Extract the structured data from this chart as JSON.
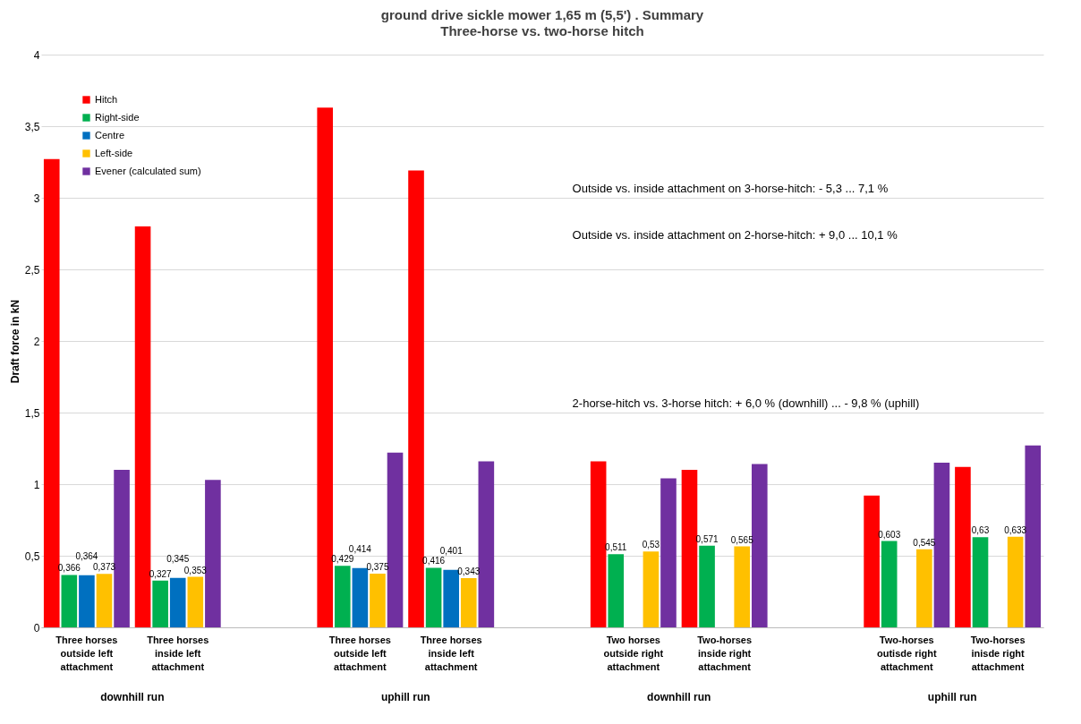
{
  "chart_data": {
    "type": "bar",
    "title": "ground drive sickle mower 1,65 m (5,5') . Summary",
    "subtitle": "Three-horse vs. two-horse hitch",
    "ylabel": "Draft force in kN",
    "categories": [
      "Three horses outside left attachment",
      "Three horses inside left attachment",
      null,
      "Three horses outside left attachment",
      "Three horses inside left attachment",
      null,
      "Two horses outside right attachment",
      "Two-horses inside right attachment",
      null,
      "Two-horses outisde right attachment",
      "Two-horses inisde right attachment"
    ],
    "series": [
      {
        "name": "Hitch",
        "color": "#ff0000",
        "values": [
          3.27,
          2.8,
          null,
          3.63,
          3.19,
          null,
          1.16,
          1.1,
          null,
          0.92,
          1.12
        ]
      },
      {
        "name": "Right-side",
        "color": "#00b050",
        "values": [
          0.366,
          0.327,
          null,
          0.429,
          0.416,
          null,
          0.511,
          0.571,
          null,
          0.603,
          0.63
        ],
        "value_labels": [
          "0,366",
          "0,327",
          null,
          "0,429",
          "0,416",
          null,
          "0,511",
          "0,571",
          null,
          "0,603",
          "0,63"
        ]
      },
      {
        "name": "Centre",
        "color": "#0070c0",
        "values": [
          0.364,
          0.345,
          null,
          0.414,
          0.401,
          null,
          null,
          null,
          null,
          null,
          null
        ],
        "value_labels": [
          "0,364",
          "0,345",
          null,
          "0,414",
          "0,401",
          null,
          null,
          null,
          null,
          null,
          null
        ]
      },
      {
        "name": "Left-side",
        "color": "#ffc000",
        "values": [
          0.373,
          0.353,
          null,
          0.375,
          0.343,
          null,
          0.53,
          0.565,
          null,
          0.545,
          0.633
        ],
        "value_labels": [
          "0,373",
          "0,353",
          null,
          "0,375",
          "0,343",
          null,
          "0,53",
          "0,565",
          null,
          "0,545",
          "0,633"
        ]
      },
      {
        "name": "Evener (calculated sum)",
        "color": "#7030a0",
        "values": [
          1.1,
          1.03,
          null,
          1.22,
          1.16,
          null,
          1.04,
          1.14,
          null,
          1.15,
          1.27
        ]
      }
    ],
    "ylim": [
      0,
      4
    ],
    "yticks": [
      0,
      {
        "value": 0.5,
        "label": "0,5"
      },
      1,
      {
        "value": 1.5,
        "label": "1,5"
      },
      2,
      {
        "value": 2.5,
        "label": "2,5"
      },
      3,
      {
        "value": 3.5,
        "label": "3,5"
      },
      4
    ],
    "grid": "y",
    "legend": "top left",
    "annotations": [
      "Outside vs. inside attachment on 3-horse-hitch: - 5,3 ... 7,1 %",
      "Outside vs. inside attachment on 2-horse-hitch: + 9,0 ... 10,1 %",
      "2-horse-hitch vs. 3-horse hitch: + 6,0 % (downhill) ... - 9,8 % (uphill)",
      "downhill run",
      "uphill run",
      "downhill run",
      "uphill run"
    ]
  }
}
